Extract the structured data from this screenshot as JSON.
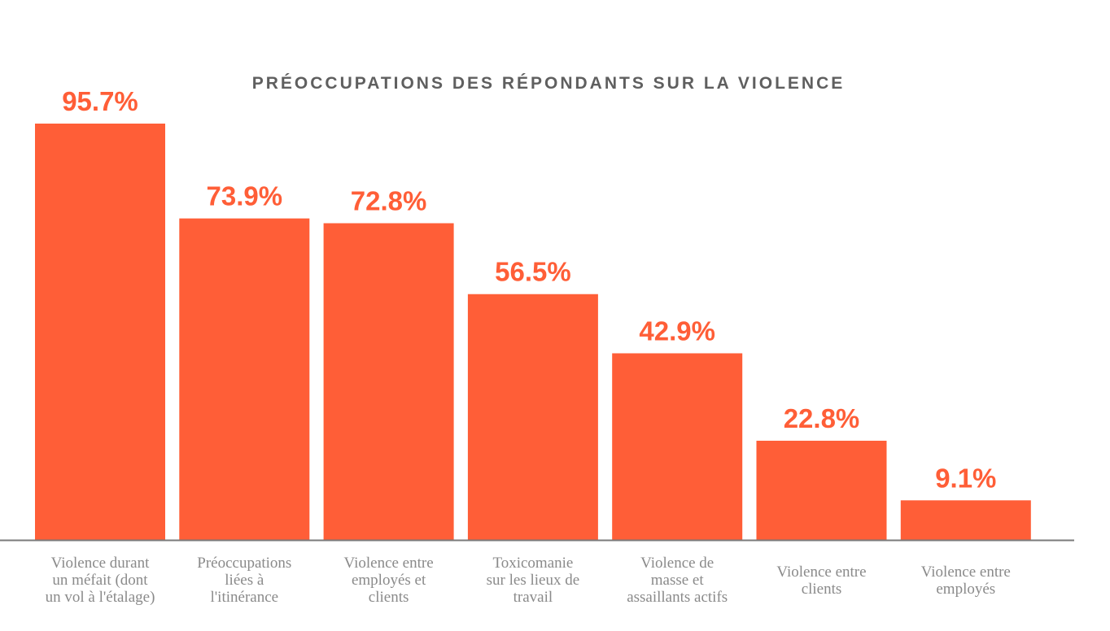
{
  "chart_data": {
    "type": "bar",
    "title": "PRÉOCCUPATIONS DES RÉPONDANTS SUR LA VIOLENCE",
    "xlabel": "",
    "ylabel": "",
    "ylim": [
      0,
      100
    ],
    "grid": false,
    "legend": "none",
    "bar_color": "#ff5e37",
    "axis_color": "#7a7a7a",
    "categories": [
      [
        "Violence durant",
        "un méfait (dont",
        "un vol à l'étalage)"
      ],
      [
        "Préoccupations",
        "liées à",
        "l'itinérance"
      ],
      [
        "Violence entre",
        "employés et",
        "clients"
      ],
      [
        "Toxicomanie",
        "sur les lieux de",
        "travail"
      ],
      [
        "Violence de",
        "masse et",
        "assaillants actifs"
      ],
      [
        "Violence entre",
        "clients"
      ],
      [
        "Violence entre",
        "employés"
      ]
    ],
    "values": [
      95.7,
      73.9,
      72.8,
      56.5,
      42.9,
      22.8,
      9.1
    ],
    "value_labels": [
      "95.7%",
      "73.9%",
      "72.8%",
      "56.5%",
      "42.9%",
      "22.8%",
      "9.1%"
    ]
  }
}
